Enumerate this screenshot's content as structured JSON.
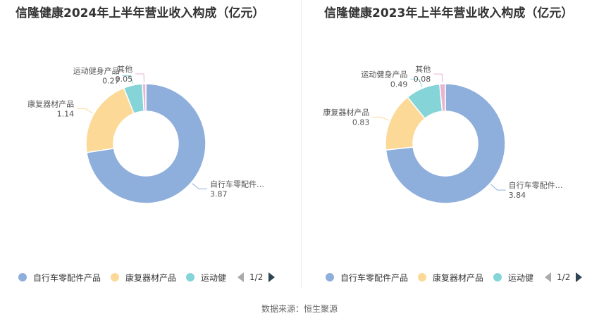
{
  "colors": {
    "series": [
      "#8eaedb",
      "#fcd997",
      "#84d4d8",
      "#e9b3d2"
    ],
    "leader_line": "#bbbbbb"
  },
  "chart_data": [
    {
      "type": "pie",
      "title": "信隆健康2024年上半年营业收入构成（亿元）",
      "categories": [
        "自行车零配件产品",
        "康复器材产品",
        "运动健身产品",
        "其他"
      ],
      "values": [
        3.87,
        1.14,
        0.27,
        0.05
      ],
      "slice_labels": [
        "自行车零配件…",
        "康复器材产品",
        "运动健身产品",
        "其他"
      ],
      "value_labels": [
        "3.87",
        "1.14",
        "0.27",
        "0.05"
      ],
      "legend": {
        "position": "bottom",
        "items": [
          "自行车零配件产品",
          "康复器材产品",
          "运动健"
        ],
        "page": "1/2"
      }
    },
    {
      "type": "pie",
      "title": "信隆健康2023年上半年营业收入构成（亿元）",
      "categories": [
        "自行车零配件产品",
        "康复器材产品",
        "运动健身产品",
        "其他"
      ],
      "values": [
        3.84,
        0.83,
        0.49,
        0.08
      ],
      "slice_labels": [
        "自行车零配件…",
        "康复器材产品",
        "运动健身产品",
        "其他"
      ],
      "value_labels": [
        "3.84",
        "0.83",
        "0.49",
        "0.08"
      ],
      "legend": {
        "position": "bottom",
        "items": [
          "自行车零配件产品",
          "康复器材产品",
          "运动健"
        ],
        "page": "1/2"
      }
    }
  ],
  "footer": {
    "source": "数据来源：恒生聚源"
  }
}
